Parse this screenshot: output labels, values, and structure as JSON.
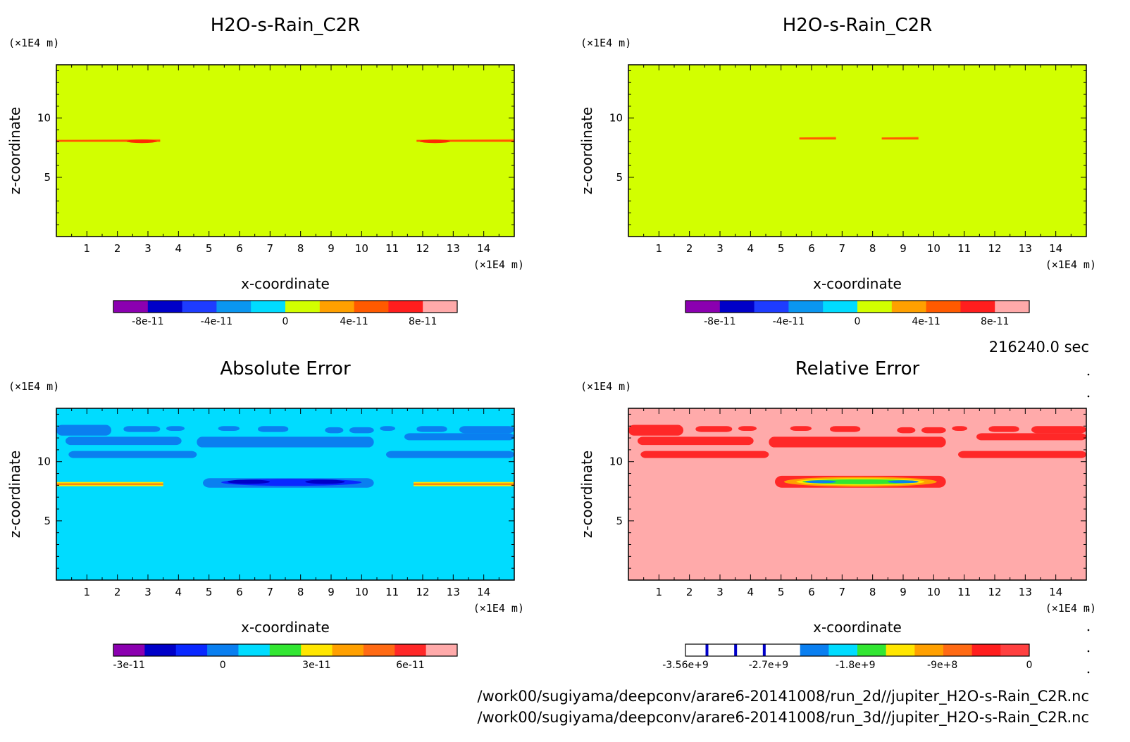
{
  "chart_data": [
    {
      "type": "heatmap",
      "title": "H2O-s-Rain_C2R",
      "xlabel": "x-coordinate",
      "ylabel": "z-coordinate",
      "x_unit": "(×1E4 m)",
      "y_unit": "(×1E4 m)",
      "xlim": [
        0,
        15
      ],
      "ylim": [
        0,
        14.5
      ],
      "x_ticks": [
        1,
        2,
        3,
        4,
        5,
        6,
        7,
        8,
        9,
        10,
        11,
        12,
        13,
        14
      ],
      "y_ticks": [
        5,
        10
      ],
      "background_level": 0,
      "colorbar": {
        "colors": [
          "#8b00b0",
          "#0000c8",
          "#1e3cff",
          "#0a96f0",
          "#00dcff",
          "#d2ff00",
          "#ffa000",
          "#ff5a00",
          "#ff1e1e",
          "#ffaaaa"
        ],
        "tick_labels": [
          "-8e-11",
          "-4e-11",
          "0",
          "4e-11",
          "8e-11"
        ],
        "tick_values": [
          -8e-11,
          -4e-11,
          0,
          4e-11,
          8e-11
        ],
        "range": [
          -1e-10,
          1e-10
        ]
      },
      "features": [
        {
          "x": [
            0,
            3.4
          ],
          "z": 8.1,
          "value": 3e-11,
          "core_x": [
            2.3,
            3.3
          ],
          "core_value": 5e-11
        },
        {
          "x": [
            11.8,
            15
          ],
          "z": 8.1,
          "value": 3e-11,
          "core_x": [
            11.9,
            12.9
          ],
          "core_value": 5e-11
        }
      ],
      "background_color": "#d2ff00"
    },
    {
      "type": "heatmap",
      "title": "H2O-s-Rain_C2R",
      "xlabel": "x-coordinate",
      "ylabel": "z-coordinate",
      "x_unit": "(×1E4 m)",
      "y_unit": "(×1E4 m)",
      "xlim": [
        0,
        15
      ],
      "ylim": [
        0,
        14.5
      ],
      "x_ticks": [
        1,
        2,
        3,
        4,
        5,
        6,
        7,
        8,
        9,
        10,
        11,
        12,
        13,
        14
      ],
      "y_ticks": [
        5,
        10
      ],
      "background_level": 0,
      "colorbar": {
        "colors": [
          "#8b00b0",
          "#0000c8",
          "#1e3cff",
          "#0a96f0",
          "#00dcff",
          "#d2ff00",
          "#ffa000",
          "#ff5a00",
          "#ff1e1e",
          "#ffaaaa"
        ],
        "tick_labels": [
          "-8e-11",
          "-4e-11",
          "0",
          "4e-11",
          "8e-11"
        ],
        "tick_values": [
          -8e-11,
          -4e-11,
          0,
          4e-11,
          8e-11
        ],
        "range": [
          -1e-10,
          1e-10
        ]
      },
      "features": [
        {
          "x": [
            5.6,
            6.8
          ],
          "z": 8.3,
          "value": 3e-11
        },
        {
          "x": [
            8.3,
            9.5
          ],
          "z": 8.3,
          "value": 3e-11
        }
      ],
      "background_color": "#d2ff00"
    },
    {
      "type": "heatmap",
      "title": "Absolute Error",
      "xlabel": "x-coordinate",
      "ylabel": "z-coordinate",
      "x_unit": "(×1E4 m)",
      "y_unit": "(×1E4 m)",
      "xlim": [
        0,
        15
      ],
      "ylim": [
        0,
        14.5
      ],
      "x_ticks": [
        1,
        2,
        3,
        4,
        5,
        6,
        7,
        8,
        9,
        10,
        11,
        12,
        13,
        14
      ],
      "y_ticks": [
        5,
        10
      ],
      "background_level": 0,
      "colorbar": {
        "colors": [
          "#8b00b0",
          "#0000c8",
          "#0a28ff",
          "#0a7ff0",
          "#00dcff",
          "#32e632",
          "#ffe600",
          "#ffa000",
          "#ff6a14",
          "#ff2828",
          "#ffaaaa"
        ],
        "tick_labels": [
          "-3e-11",
          "0",
          "3e-11",
          "6e-11"
        ],
        "tick_values": [
          -3e-11,
          0,
          3e-11,
          6e-11
        ],
        "range": [
          -3.5e-11,
          7.5e-11
        ]
      },
      "features": [
        {
          "x": [
            0,
            15
          ],
          "z": [
            10.0,
            12.7
          ],
          "value": -5e-12,
          "desc": "patchy band"
        },
        {
          "x": [
            4.8,
            10.4
          ],
          "z": [
            7.8,
            8.6
          ],
          "value": -1e-11,
          "core_value": -2.5e-11
        },
        {
          "x": [
            0,
            3.5
          ],
          "z": 8.1,
          "value": 3e-11
        },
        {
          "x": [
            11.7,
            15
          ],
          "z": 8.1,
          "value": 3e-11
        }
      ],
      "background_color": "#00dcff"
    },
    {
      "type": "heatmap",
      "title": "Relative Error",
      "xlabel": "x-coordinate",
      "ylabel": "z-coordinate",
      "x_unit": "(×1E4 m)",
      "y_unit": "(×1E4 m)",
      "xlim": [
        0,
        15
      ],
      "ylim": [
        0,
        14.5
      ],
      "x_ticks": [
        1,
        2,
        3,
        4,
        5,
        6,
        7,
        8,
        9,
        10,
        11,
        12,
        13,
        14
      ],
      "y_ticks": [
        5,
        10
      ],
      "background_level": 0,
      "colorbar": {
        "colors": [
          "#ffffff",
          "#ffffff",
          "#ffffff",
          "#ffffff",
          "#0a7ff0",
          "#00dcff",
          "#32e632",
          "#ffe600",
          "#ffa000",
          "#ff6a14",
          "#ff1e1e",
          "#ff4040"
        ],
        "tick_labels": [
          "-3.56e+9",
          "-2.7e+9",
          "-1.8e+9",
          "-9e+8",
          "0"
        ],
        "tick_values": [
          -3560000000.0,
          -2700000000.0,
          -1800000000.0,
          -900000000.0,
          0
        ],
        "range": [
          -3560000000.0,
          0
        ]
      },
      "features": [
        {
          "x": [
            0,
            15
          ],
          "z": [
            10.0,
            12.7
          ],
          "value": -150000000.0,
          "desc": "patchy band"
        },
        {
          "x": [
            4.8,
            10.4
          ],
          "z": [
            7.8,
            8.8
          ],
          "value": -150000000.0,
          "core_value": -1500000000.0
        }
      ],
      "background_color": "#ffaaaa"
    }
  ],
  "time_label": "216240.0 sec",
  "file_paths": [
    "/work00/sugiyama/deepconv/arare6-20141008/run_2d//jupiter_H2O-s-Rain_C2R.nc",
    "/work00/sugiyama/deepconv/arare6-20141008/run_3d//jupiter_H2O-s-Rain_C2R.nc"
  ]
}
